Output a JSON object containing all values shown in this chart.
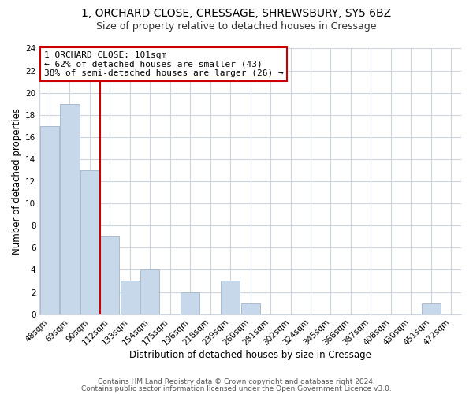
{
  "title1": "1, ORCHARD CLOSE, CRESSAGE, SHREWSBURY, SY5 6BZ",
  "title2": "Size of property relative to detached houses in Cressage",
  "xlabel": "Distribution of detached houses by size in Cressage",
  "ylabel": "Number of detached properties",
  "bar_color": "#c8d8eb",
  "bar_edge_color": "#aabccc",
  "bin_labels": [
    "48sqm",
    "69sqm",
    "90sqm",
    "112sqm",
    "133sqm",
    "154sqm",
    "175sqm",
    "196sqm",
    "218sqm",
    "239sqm",
    "260sqm",
    "281sqm",
    "302sqm",
    "324sqm",
    "345sqm",
    "366sqm",
    "387sqm",
    "408sqm",
    "430sqm",
    "451sqm",
    "472sqm"
  ],
  "bar_values": [
    17,
    19,
    13,
    7,
    3,
    4,
    0,
    2,
    0,
    3,
    1,
    0,
    0,
    0,
    0,
    0,
    0,
    0,
    0,
    1,
    0
  ],
  "ylim": [
    0,
    24
  ],
  "yticks": [
    0,
    2,
    4,
    6,
    8,
    10,
    12,
    14,
    16,
    18,
    20,
    22,
    24
  ],
  "annotation_title": "1 ORCHARD CLOSE: 101sqm",
  "annotation_line1": "← 62% of detached houses are smaller (43)",
  "annotation_line2": "38% of semi-detached houses are larger (26) →",
  "vline_color": "#cc0000",
  "annotation_box_color": "#ffffff",
  "annotation_box_edge": "#cc0000",
  "footer1": "Contains HM Land Registry data © Crown copyright and database right 2024.",
  "footer2": "Contains public sector information licensed under the Open Government Licence v3.0.",
  "bg_color": "#ffffff",
  "grid_color": "#cdd5de",
  "title1_fontsize": 10,
  "title2_fontsize": 9,
  "axis_label_fontsize": 8.5,
  "tick_fontsize": 7.5,
  "footer_fontsize": 6.5,
  "annotation_fontsize": 8
}
